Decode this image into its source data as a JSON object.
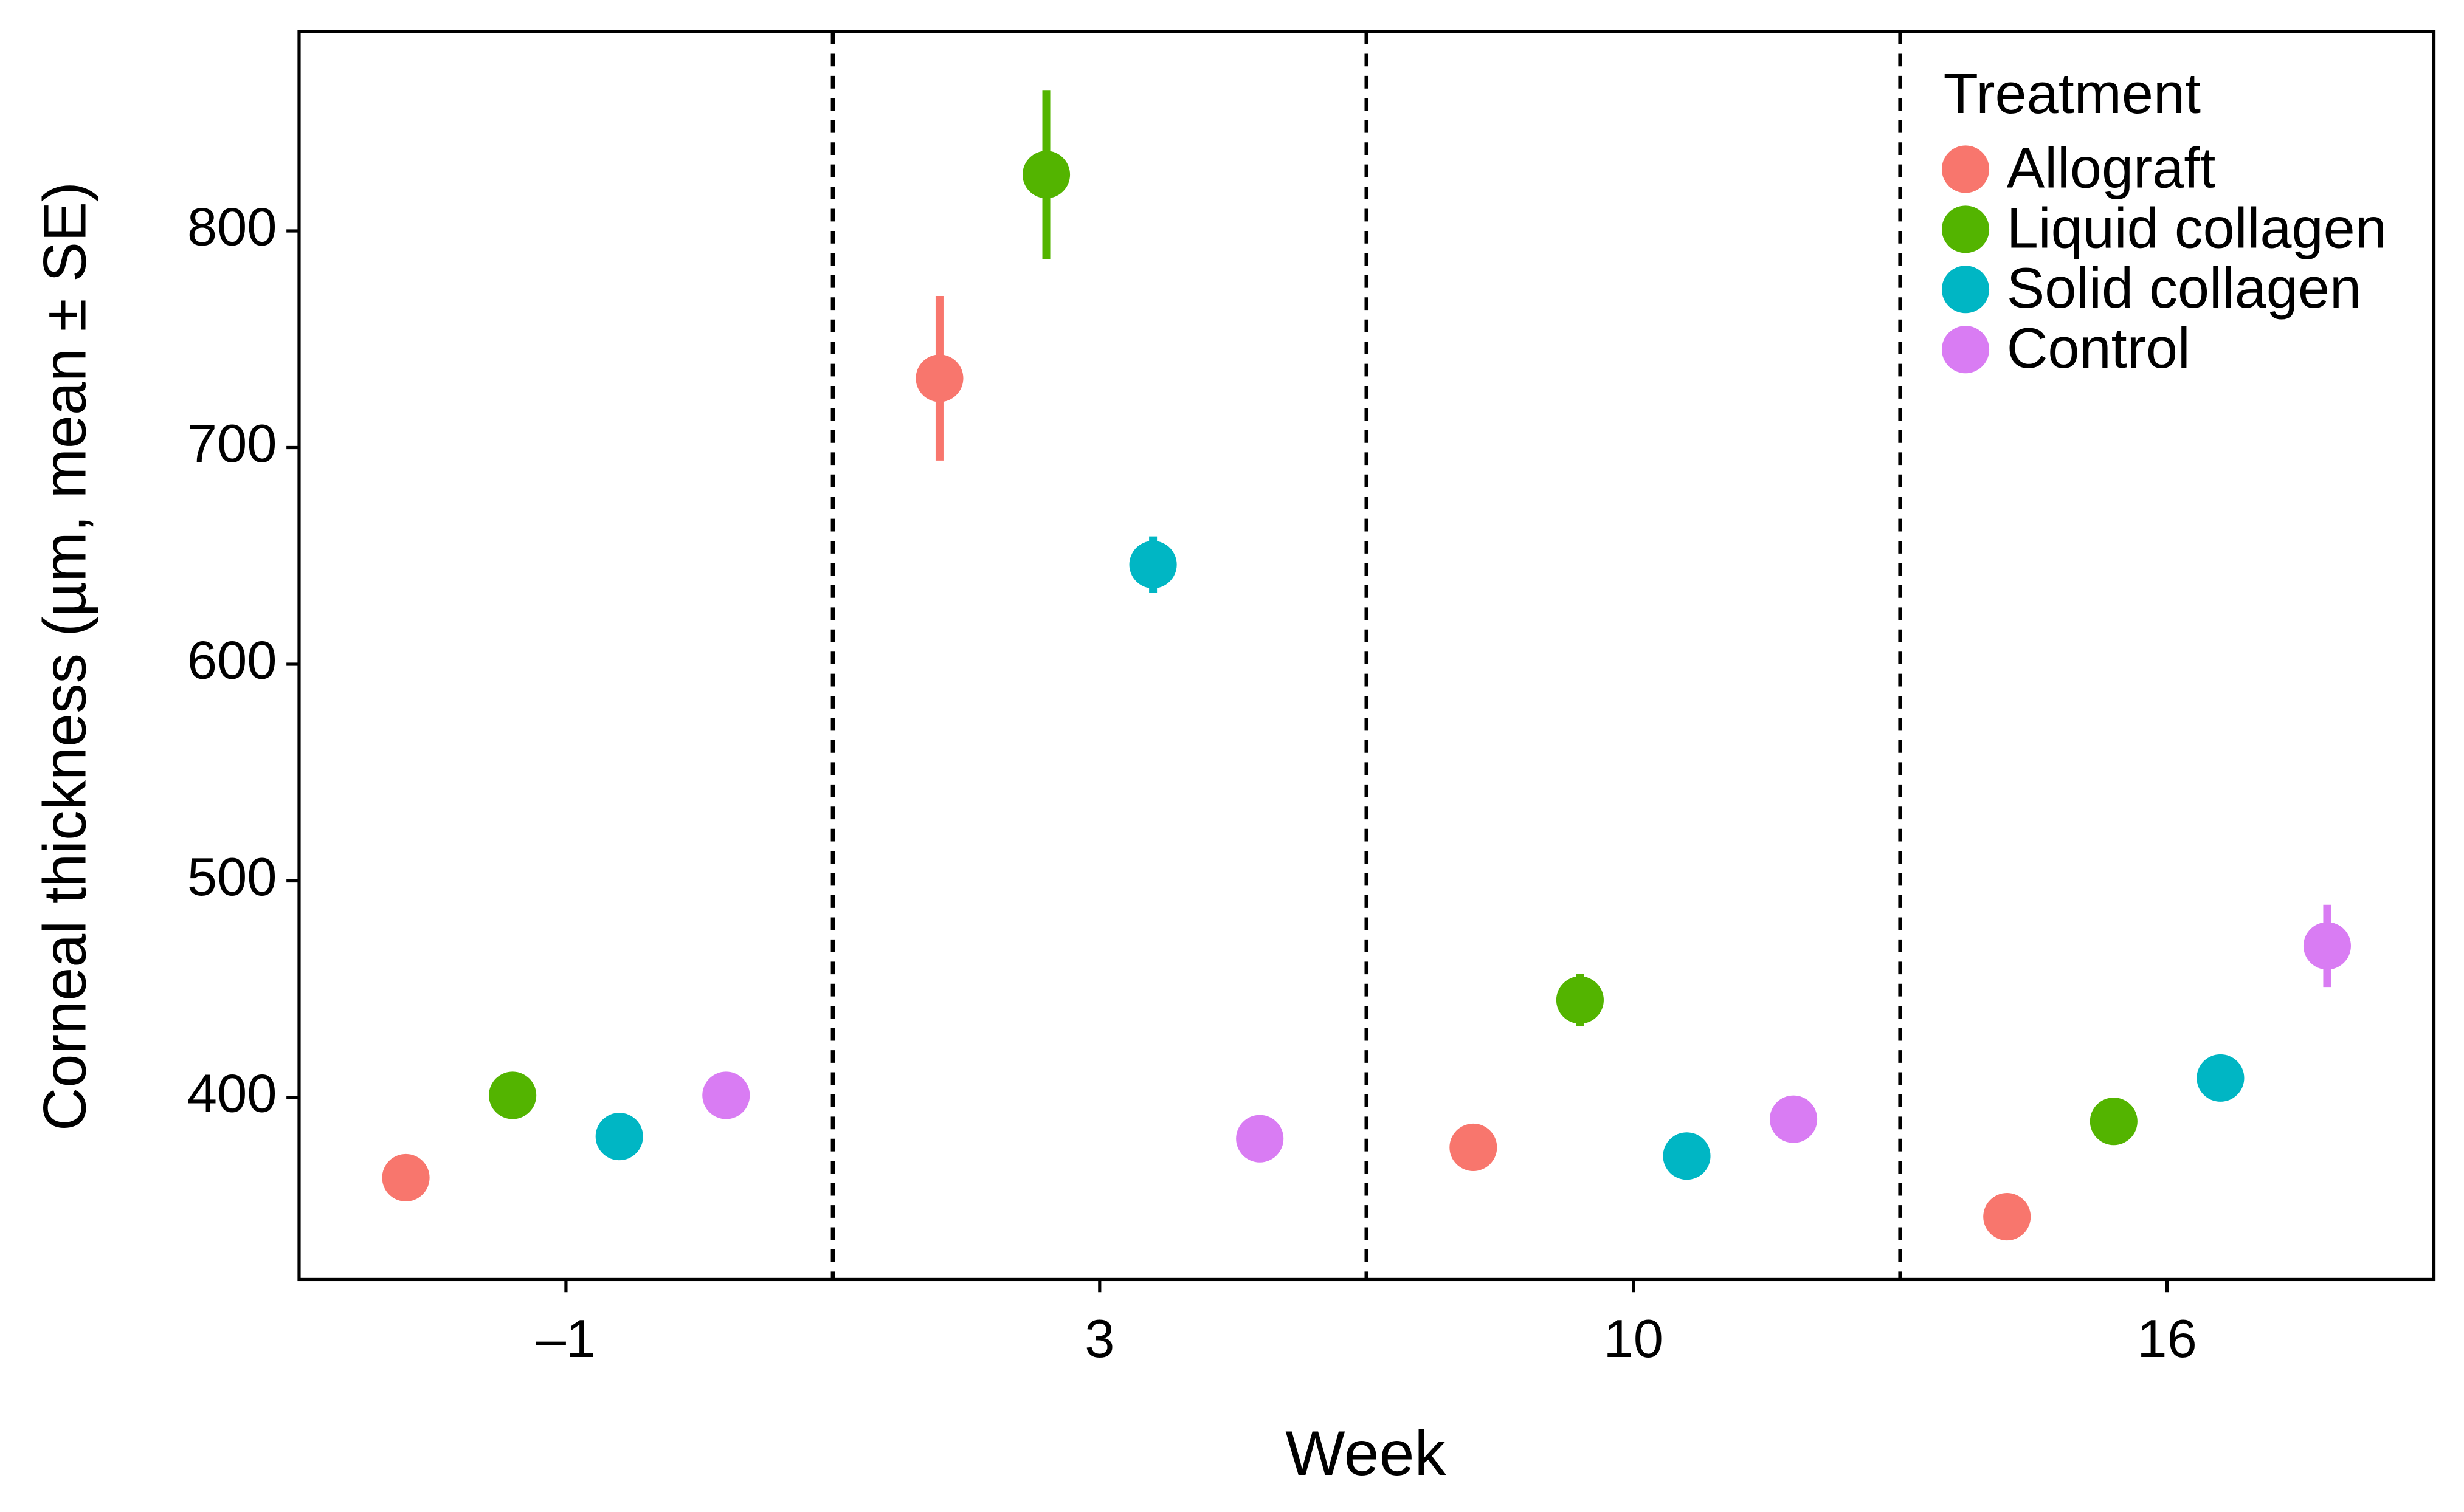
{
  "chart_data": {
    "type": "dotplot",
    "x_label": "Week",
    "y_label": "Corneal thickness (µm, mean ± SE)",
    "legend_title": "Treatment",
    "legend_position": "top-right",
    "categories": [
      "–1",
      "3",
      "10",
      "16"
    ],
    "series": [
      {
        "name": "Allograft",
        "color": "#f8766d",
        "values": [
          363,
          732,
          377,
          345
        ],
        "errors": [
          4,
          38,
          4,
          4
        ]
      },
      {
        "name": "Liquid collagen",
        "color": "#53b400",
        "values": [
          401,
          826,
          445,
          389
        ],
        "errors": [
          4,
          39,
          12,
          4
        ]
      },
      {
        "name": "Solid collagen",
        "color": "#00b6c4",
        "values": [
          382,
          646,
          373,
          409
        ],
        "errors": [
          4,
          13,
          4,
          4
        ]
      },
      {
        "name": "Control",
        "color": "#d97cf3",
        "values": [
          401,
          381,
          390,
          470
        ],
        "errors": [
          4,
          4,
          4,
          19
        ]
      }
    ],
    "ylim": [
      316,
      892
    ],
    "yticks": [
      400,
      500,
      600,
      700,
      800
    ],
    "grid": false
  }
}
